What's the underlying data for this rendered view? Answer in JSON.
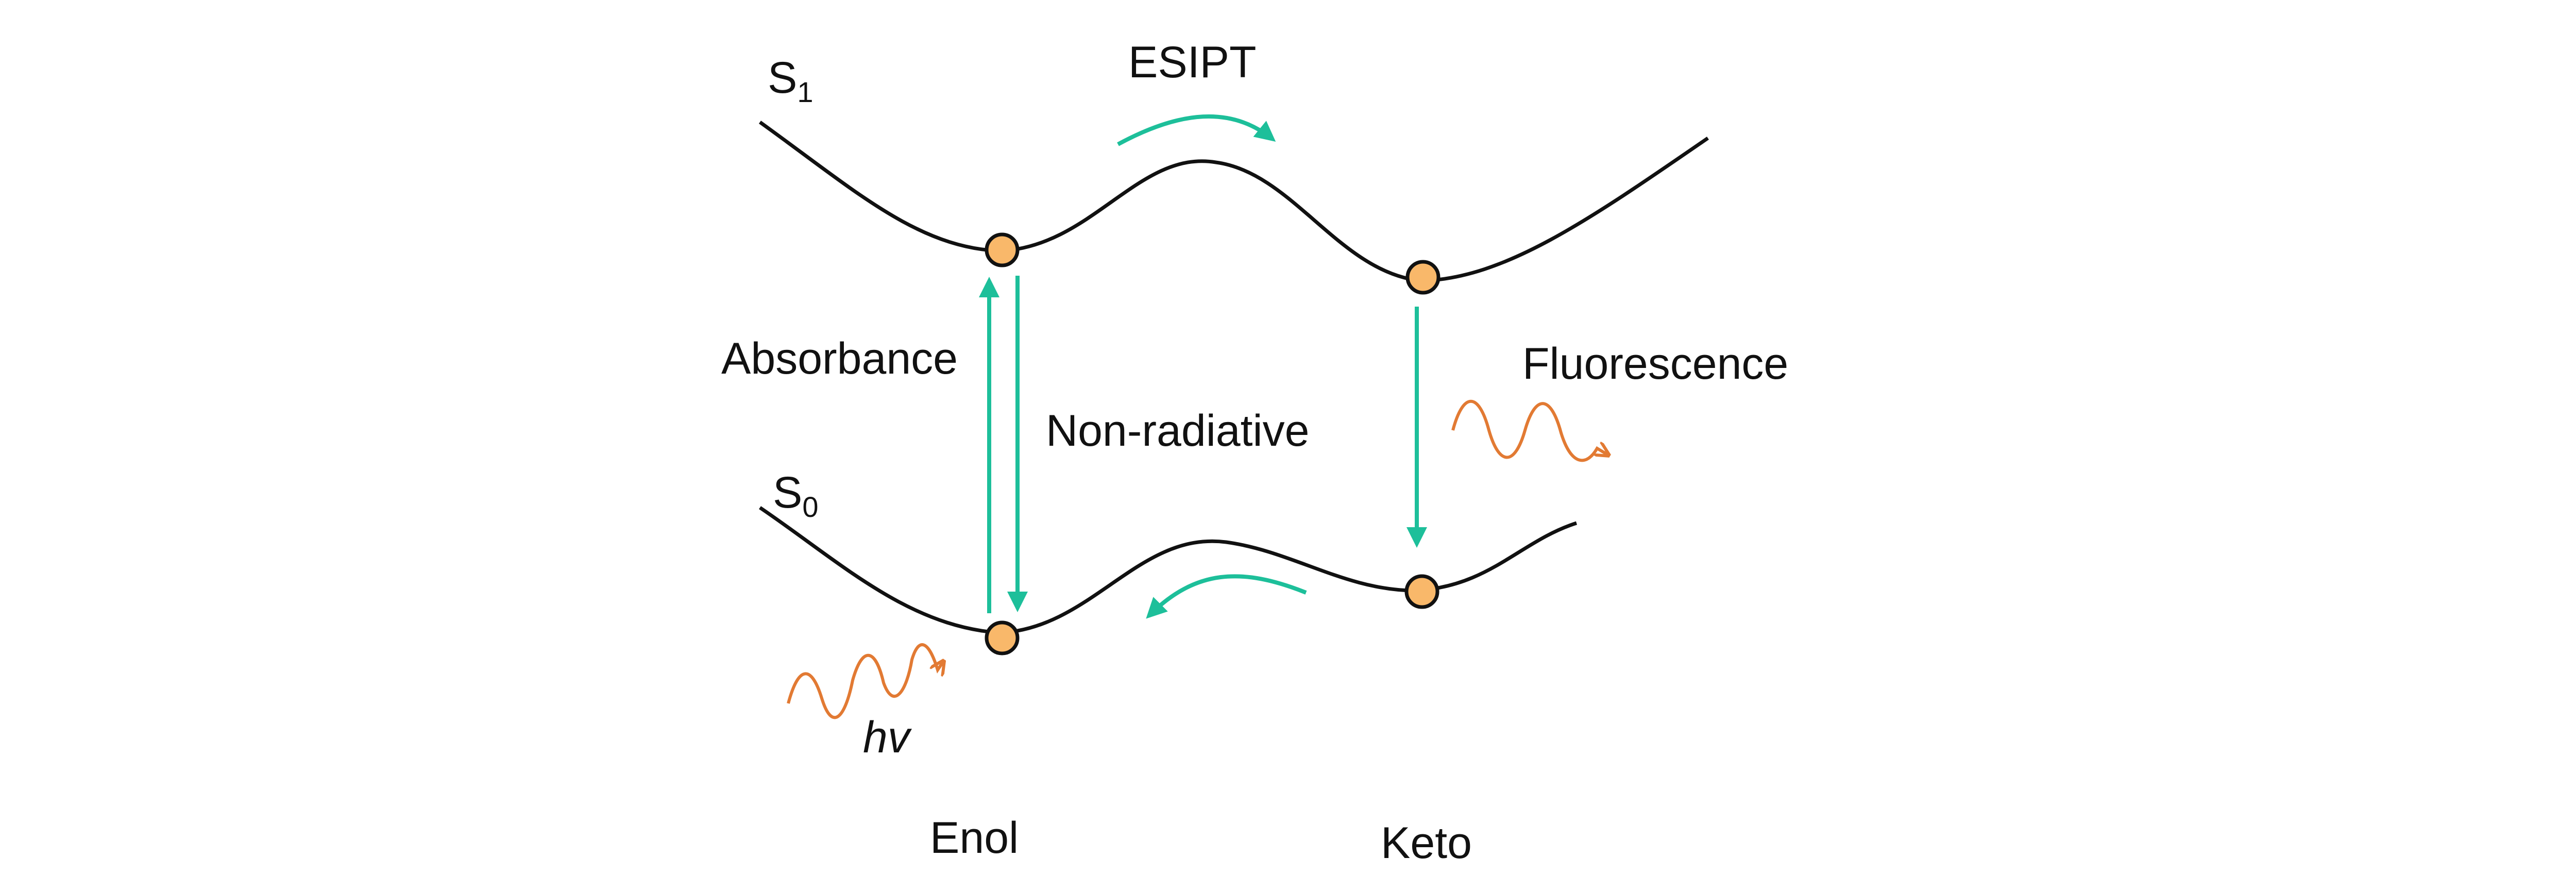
{
  "labels": {
    "s1": {
      "main": "S",
      "sub": "1"
    },
    "s0": {
      "main": "S",
      "sub": "0"
    },
    "esipt": "ESIPT",
    "absorbance": "Absorbance",
    "non_radiative": "Non-radiative",
    "fluorescence": "Fluorescence",
    "hv": {
      "h": "h",
      "v": "v"
    },
    "enol": "Enol",
    "keto": "Keto"
  },
  "colors": {
    "curve": "#111111",
    "arrow": "#1dbf9a",
    "wave": "#e27a33",
    "node_fill": "#f9b86a",
    "node_stroke": "#111111"
  },
  "icons": {
    "photon_in": "wavy-arrow-icon",
    "photon_out": "wavy-arrow-icon"
  }
}
